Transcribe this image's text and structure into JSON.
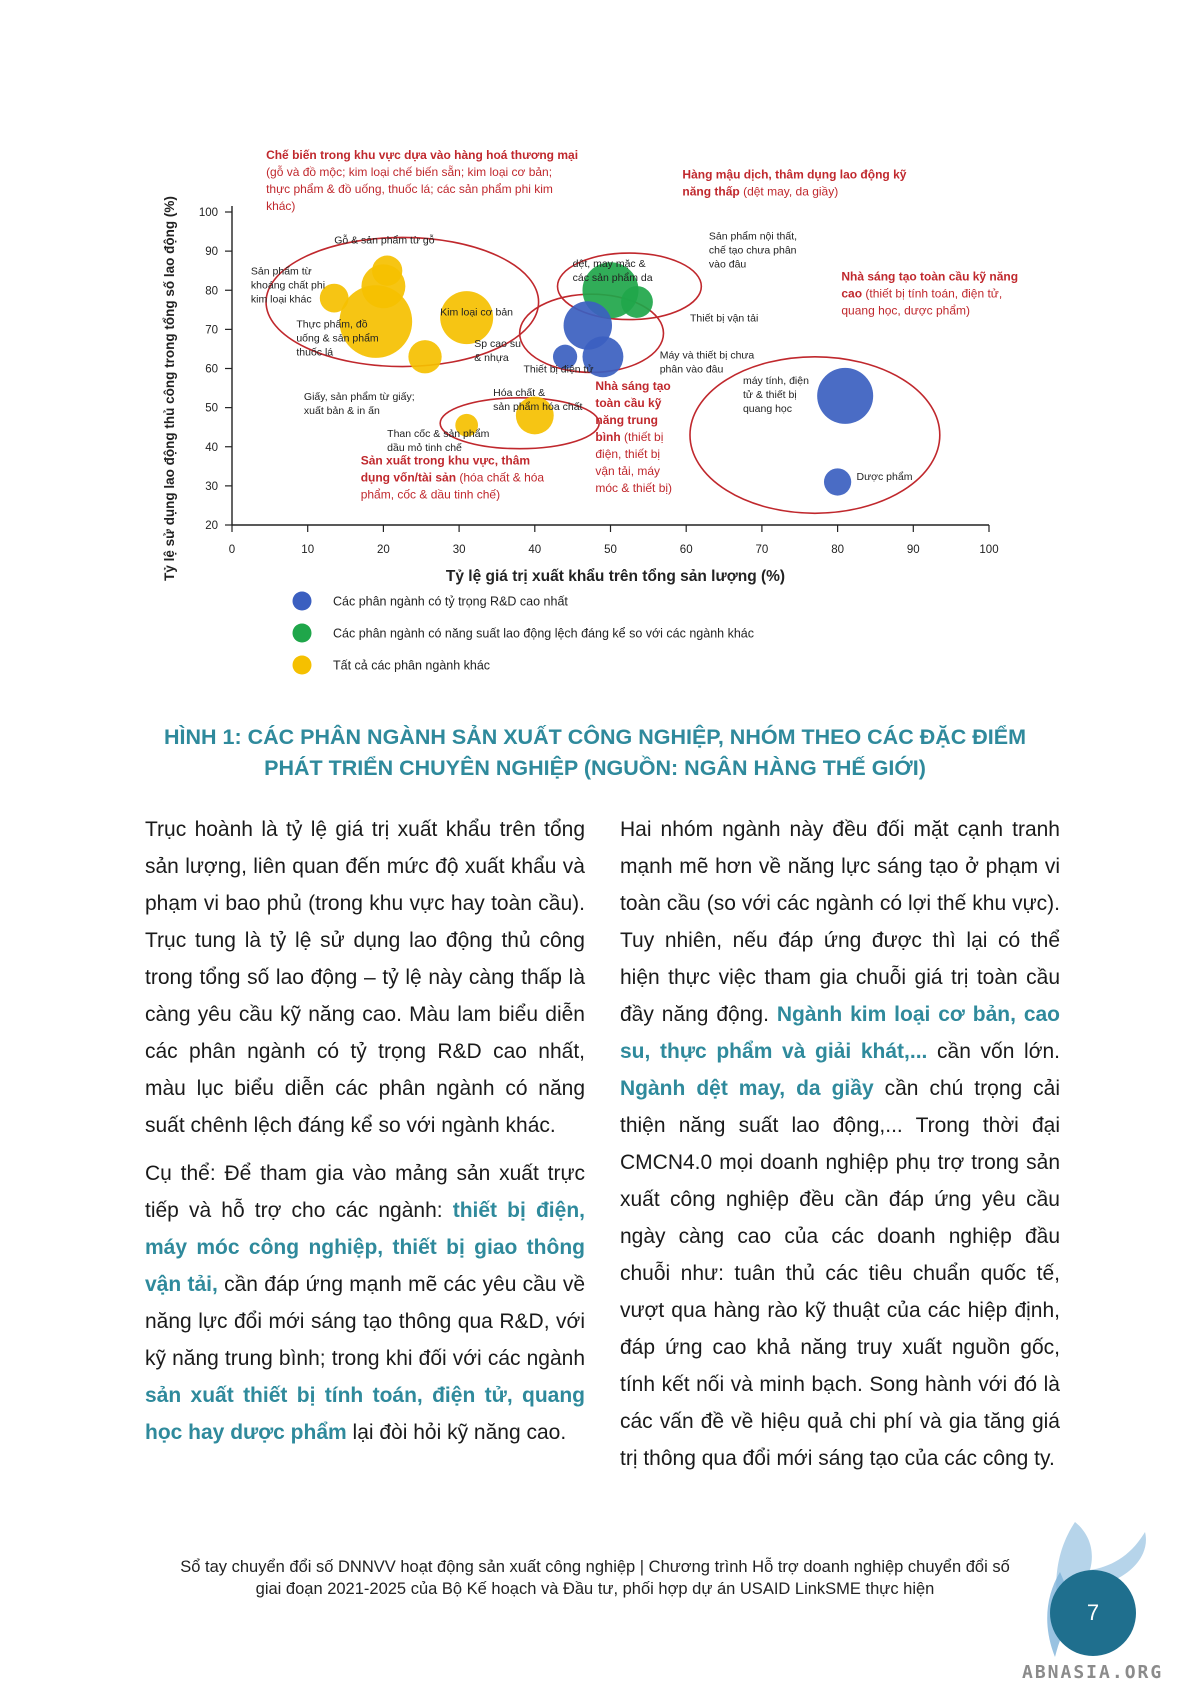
{
  "chart_data": {
    "type": "scatter",
    "xlabel": "Tỷ lệ giá trị xuất khẩu trên tổng sản lượng (%)",
    "ylabel": "Tỷ lệ sử dụng lao động thủ công trong tổng số lao động (%)",
    "xlim": [
      0,
      100
    ],
    "ylim": [
      20,
      100
    ],
    "x_ticks": [
      0,
      10,
      20,
      30,
      40,
      50,
      60,
      70,
      80,
      90,
      100
    ],
    "y_ticks": [
      20,
      30,
      40,
      50,
      60,
      70,
      80,
      90,
      100
    ],
    "grid": false,
    "colors": {
      "blue": "#3b5fc0",
      "green": "#1fa64a",
      "yellow": "#f5c000",
      "annotation_red": "#c0282d",
      "ellipse": "#c0282d"
    },
    "legend": [
      {
        "label": "Các phân ngành có tỷ trọng R&D cao nhất",
        "color": "#3b5fc0"
      },
      {
        "label": "Các phân ngành có năng suất lao động lệch đáng kể so với các ngành khác",
        "color": "#1fa64a"
      },
      {
        "label": "Tất cả các phân ngành khác",
        "color": "#f5c000"
      }
    ],
    "points": [
      {
        "x": 20.5,
        "y": 85,
        "r": 2.0,
        "color": "yellow"
      },
      {
        "x": 20.0,
        "y": 81,
        "r": 2.9,
        "color": "yellow"
      },
      {
        "x": 13.5,
        "y": 78,
        "r": 1.9,
        "color": "yellow"
      },
      {
        "x": 19.0,
        "y": 72,
        "r": 4.8,
        "color": "yellow"
      },
      {
        "x": 31.0,
        "y": 73,
        "r": 3.5,
        "color": "yellow"
      },
      {
        "x": 25.5,
        "y": 63,
        "r": 2.2,
        "color": "yellow"
      },
      {
        "x": 31.0,
        "y": 45.5,
        "r": 1.5,
        "color": "yellow"
      },
      {
        "x": 40.0,
        "y": 48,
        "r": 2.5,
        "color": "yellow"
      },
      {
        "x": 50.0,
        "y": 80,
        "r": 3.7,
        "color": "green"
      },
      {
        "x": 53.5,
        "y": 77,
        "r": 2.1,
        "color": "green"
      },
      {
        "x": 47.0,
        "y": 71,
        "r": 3.2,
        "color": "blue"
      },
      {
        "x": 49.0,
        "y": 63,
        "r": 2.7,
        "color": "blue"
      },
      {
        "x": 44.0,
        "y": 63,
        "r": 1.6,
        "color": "blue"
      },
      {
        "x": 81.0,
        "y": 53,
        "r": 3.7,
        "color": "blue"
      },
      {
        "x": 80.0,
        "y": 31,
        "r": 1.8,
        "color": "blue"
      }
    ],
    "ellipses": [
      {
        "cx": 22.5,
        "cy": 77,
        "rx": 18.0,
        "ry": 16.5
      },
      {
        "cx": 52.5,
        "cy": 81,
        "rx": 9.5,
        "ry": 8.5
      },
      {
        "cx": 47.5,
        "cy": 69,
        "rx": 9.5,
        "ry": 10.0
      },
      {
        "cx": 38.0,
        "cy": 46,
        "rx": 10.5,
        "ry": 6.5
      },
      {
        "cx": 77.0,
        "cy": 43,
        "rx": 16.5,
        "ry": 20.0
      }
    ],
    "point_labels": [
      {
        "text": "Gỗ & sản phẩm từ gỗ",
        "x": 13.5,
        "y": 92
      },
      {
        "lines": [
          "Sản phẩm từ",
          "khoáng chất phi",
          "kim loại khác"
        ],
        "x": 2.5,
        "y": 84
      },
      {
        "lines": [
          "Thực phẩm, đồ",
          "uống & sản phẩm",
          "thuốc lá"
        ],
        "x": 8.5,
        "y": 70.5
      },
      {
        "text": "Kim loại cơ bản",
        "x": 27.5,
        "y": 73.5
      },
      {
        "lines": [
          "Sp cao su",
          "& nhựa"
        ],
        "x": 32.0,
        "y": 65.5
      },
      {
        "lines": [
          "Giấy, sản phẩm từ giấy;",
          "xuất bản & in ấn"
        ],
        "x": 9.5,
        "y": 52
      },
      {
        "lines": [
          "Hóa chất &",
          "sản phẩm hóa chất"
        ],
        "x": 34.5,
        "y": 53
      },
      {
        "lines": [
          "Than cốc & sản phẩm",
          "dầu mỏ tinh chế"
        ],
        "x": 20.5,
        "y": 42.5
      },
      {
        "lines": [
          "dệt, may mặc &",
          "các sản phẩm da"
        ],
        "x": 45.0,
        "y": 86
      },
      {
        "lines": [
          "Sản phẩm nội thất,",
          "chế tạo chưa phân",
          "vào đâu"
        ],
        "x": 63.0,
        "y": 93
      },
      {
        "text": "Thiết bị vận tải",
        "x": 60.5,
        "y": 72
      },
      {
        "lines": [
          "Máy và thiết bị chưa",
          "phân vào đâu"
        ],
        "x": 56.5,
        "y": 62.5
      },
      {
        "text": "Thiết bị điện tử",
        "x": 38.5,
        "y": 59
      },
      {
        "lines": [
          "máy tính, điện",
          "tử & thiết bị",
          "quang học"
        ],
        "x": 67.5,
        "y": 56
      },
      {
        "text": "Dược phẩm",
        "x": 82.5,
        "y": 31.5
      }
    ],
    "annotations": [
      {
        "lines": [
          [
            {
              "t": "Chế biến trong khu vực dựa vào hàng hoá thương mại",
              "b": true
            }
          ],
          [
            {
              "t": "(gỗ và đồ mộc; kim loại chế biến sẵn; kim loại cơ bản;"
            }
          ],
          [
            {
              "t": "thực phẩm & đồ uống, thuốc lá; các sản phẩm phi kim"
            }
          ],
          [
            {
              "t": "khác)"
            }
          ]
        ],
        "x": 4.5,
        "y": 113.5
      },
      {
        "lines": [
          [
            {
              "t": "Hàng mậu dịch, thâm dụng lao động kỹ",
              "b": true
            }
          ],
          [
            {
              "t": "năng thấp",
              "b": true
            },
            {
              "t": " (dệt may, da giầy)"
            }
          ]
        ],
        "x": 59.5,
        "y": 108.5
      },
      {
        "lines": [
          [
            {
              "t": "Nhà sáng tạo toàn cầu kỹ năng",
              "b": true
            }
          ],
          [
            {
              "t": "cao",
              "b": true
            },
            {
              "t": " (thiết bị tính toán, điện tử,"
            }
          ],
          [
            {
              "t": "quang học, dược phẩm)"
            }
          ]
        ],
        "x": 80.5,
        "y": 82.5
      },
      {
        "lines": [
          [
            {
              "t": "Nhà sáng tạo",
              "b": true
            }
          ],
          [
            {
              "t": "toàn cầu kỹ",
              "b": true
            }
          ],
          [
            {
              "t": "năng trung",
              "b": true
            }
          ],
          [
            {
              "t": "bình",
              "b": true
            },
            {
              "t": " (thiết bị"
            }
          ],
          [
            {
              "t": "điện, thiết bị"
            }
          ],
          [
            {
              "t": "vận tải, máy"
            }
          ],
          [
            {
              "t": "móc & thiết bị)"
            }
          ]
        ],
        "x": 48.0,
        "y": 54.5
      },
      {
        "lines": [
          [
            {
              "t": "Sản  xuất  trong  khu  vực,  thâm",
              "b": true
            }
          ],
          [
            {
              "t": "dụng vốn/tài sản",
              "b": true
            },
            {
              "t": " (hóa chất & hóa"
            }
          ],
          [
            {
              "t": "phẩm, cốc & dầu tinh chế)"
            }
          ]
        ],
        "x": 17.0,
        "y": 35.5
      }
    ]
  },
  "caption": {
    "line1": "HÌNH 1: CÁC PHÂN NGÀNH SẢN XUẤT CÔNG NGHIỆP, NHÓM THEO CÁC ĐẶC ĐIỂM",
    "line2": "PHÁT TRIỂN CHUYÊN NGHIỆP (NGUỒN: NGÂN HÀNG THẾ GIỚI)"
  },
  "body": {
    "left_p1": "Trục hoành là tỷ lệ giá trị xuất khẩu trên tổng sản lượng, liên quan đến mức độ xuất khẩu và phạm vi bao phủ (trong khu vực hay toàn cầu). Trục tung là tỷ lệ sử dụng lao động thủ công trong tổng số lao động – tỷ lệ này càng thấp là càng yêu cầu kỹ năng cao. Màu lam biểu diễn các phân ngành có tỷ trọng R&D cao nhất, màu lục biểu diễn các phân ngành có năng suất chênh lệch đáng kể so với ngành khác.",
    "left_p2_a": "Cụ thể: Để tham gia vào mảng sản xuất trực tiếp và hỗ trợ cho các ngành: ",
    "left_p2_hl1": "thiết bị điện, máy móc công nghiệp, thiết bị giao thông vận tải,",
    "left_p2_b": " cần đáp ứng mạnh mẽ các yêu cầu về năng lực đổi mới sáng tạo thông qua R&D, với kỹ năng trung bình; trong khi đối với các ngành ",
    "left_p2_hl2": "sản xuất thiết bị tính toán, điện tử, quang học hay dược phẩm",
    "left_p2_c": " lại đòi hỏi kỹ năng cao.",
    "right_a": "Hai nhóm ngành này đều đối mặt cạnh tranh mạnh mẽ hơn về năng lực sáng tạo ở phạm vi toàn cầu (so với các ngành có lợi thế khu vực). Tuy nhiên, nếu đáp ứng được thì lại có thể hiện thực việc tham gia chuỗi giá trị toàn cầu đầy năng động. ",
    "right_hl1": "Ngành kim loại cơ bản, cao su, thực phẩm và giải khát,...",
    "right_b": " cần vốn lớn. ",
    "right_hl2": "Ngành dệt may, da giầy",
    "right_c": " cần chú trọng cải thiện năng suất lao động,... Trong thời đại CMCN4.0 mọi doanh nghiệp phụ trợ trong sản xuất công nghiệp đều cần đáp ứng yêu cầu ngày càng cao của các doanh nghiệp đầu chuỗi như: tuân thủ các tiêu chuẩn quốc tế, vượt qua hàng rào kỹ thuật của các hiệp định, đáp ứng cao khả năng truy xuất nguồn gốc, tính kết nối và minh bạch. Song hành với đó là các vấn đề về hiệu quả chi phí và gia tăng giá trị thông qua đổi mới sáng tạo của các công ty."
  },
  "footer": {
    "line1": "Sổ tay chuyển đổi số DNNVV hoạt động sản xuất công nghiệp | Chương trình Hỗ trợ doanh nghiệp chuyển đổi số",
    "line2": "giai đoạn 2021-2025 của Bộ Kế hoạch và Đầu tư, phối hợp dự án USAID LinkSME thực hiện"
  },
  "page_number": "7",
  "watermark": "ABNASIA.ORG"
}
